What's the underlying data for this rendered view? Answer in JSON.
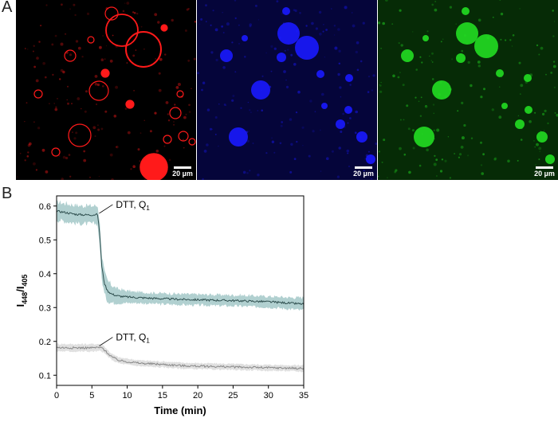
{
  "panels": {
    "a": {
      "letter": "A",
      "images": [
        {
          "channel": "red",
          "color": "#ff1a1a",
          "scale_label": "20 µm"
        },
        {
          "channel": "blue",
          "color": "#1a1aff",
          "scale_label": "20 µm"
        },
        {
          "channel": "green",
          "color": "#22dd22",
          "scale_label": "20 µm"
        }
      ]
    },
    "b": {
      "letter": "B"
    }
  },
  "chart_data": {
    "type": "line",
    "xlabel": "Time (min)",
    "ylabel_main": "I",
    "ylabel_sub1": "448",
    "ylabel_sep": "/I",
    "ylabel_sub2": "405",
    "xlim": [
      0,
      35
    ],
    "ylim": [
      0.07,
      0.63
    ],
    "xticks": [
      0,
      5,
      10,
      15,
      20,
      25,
      30,
      35
    ],
    "yticks": [
      0.1,
      0.2,
      0.3,
      0.4,
      0.5,
      0.6
    ],
    "ytick_labels": [
      "0.1",
      "0.2",
      "0.3",
      "0.4",
      "0.5",
      "0.6"
    ],
    "series": [
      {
        "color": "#2f4f4f",
        "band_color": "#a9cccc",
        "x": [
          0,
          1,
          2,
          3,
          4,
          5,
          5.8,
          6.1,
          6.4,
          6.8,
          7.2,
          7.8,
          8.5,
          9.5,
          11,
          13,
          15,
          18,
          22,
          26,
          30,
          33,
          35
        ],
        "y": [
          0.585,
          0.582,
          0.578,
          0.575,
          0.574,
          0.574,
          0.575,
          0.52,
          0.42,
          0.37,
          0.35,
          0.34,
          0.335,
          0.332,
          0.33,
          0.328,
          0.326,
          0.324,
          0.322,
          0.32,
          0.317,
          0.313,
          0.31
        ],
        "spread": [
          0.025,
          0.025,
          0.025,
          0.025,
          0.025,
          0.025,
          0.025,
          0.025,
          0.03,
          0.03,
          0.028,
          0.025,
          0.02,
          0.018,
          0.015,
          0.015,
          0.015,
          0.015,
          0.015,
          0.015,
          0.015,
          0.016,
          0.018
        ]
      },
      {
        "color": "#888888",
        "band_color": "#dddddd",
        "x": [
          0,
          2,
          4,
          5,
          6,
          6.5,
          7,
          7.5,
          8,
          8.5,
          9,
          10,
          12,
          15,
          18,
          22,
          26,
          30,
          33,
          35
        ],
        "y": [
          0.182,
          0.181,
          0.181,
          0.181,
          0.182,
          0.18,
          0.17,
          0.16,
          0.152,
          0.147,
          0.143,
          0.14,
          0.135,
          0.132,
          0.128,
          0.126,
          0.124,
          0.122,
          0.121,
          0.12
        ],
        "spread": [
          0.01,
          0.01,
          0.01,
          0.01,
          0.01,
          0.01,
          0.009,
          0.008,
          0.008,
          0.008,
          0.008,
          0.008,
          0.008,
          0.008,
          0.008,
          0.008,
          0.008,
          0.008,
          0.008,
          0.009
        ]
      }
    ],
    "annotations": [
      {
        "text": "DTT, Q",
        "sub": "1",
        "arrow_to": [
          5.8,
          0.576
        ]
      },
      {
        "text": "DTT, Q",
        "sub": "1",
        "arrow_to": [
          5.8,
          0.184
        ]
      }
    ]
  }
}
